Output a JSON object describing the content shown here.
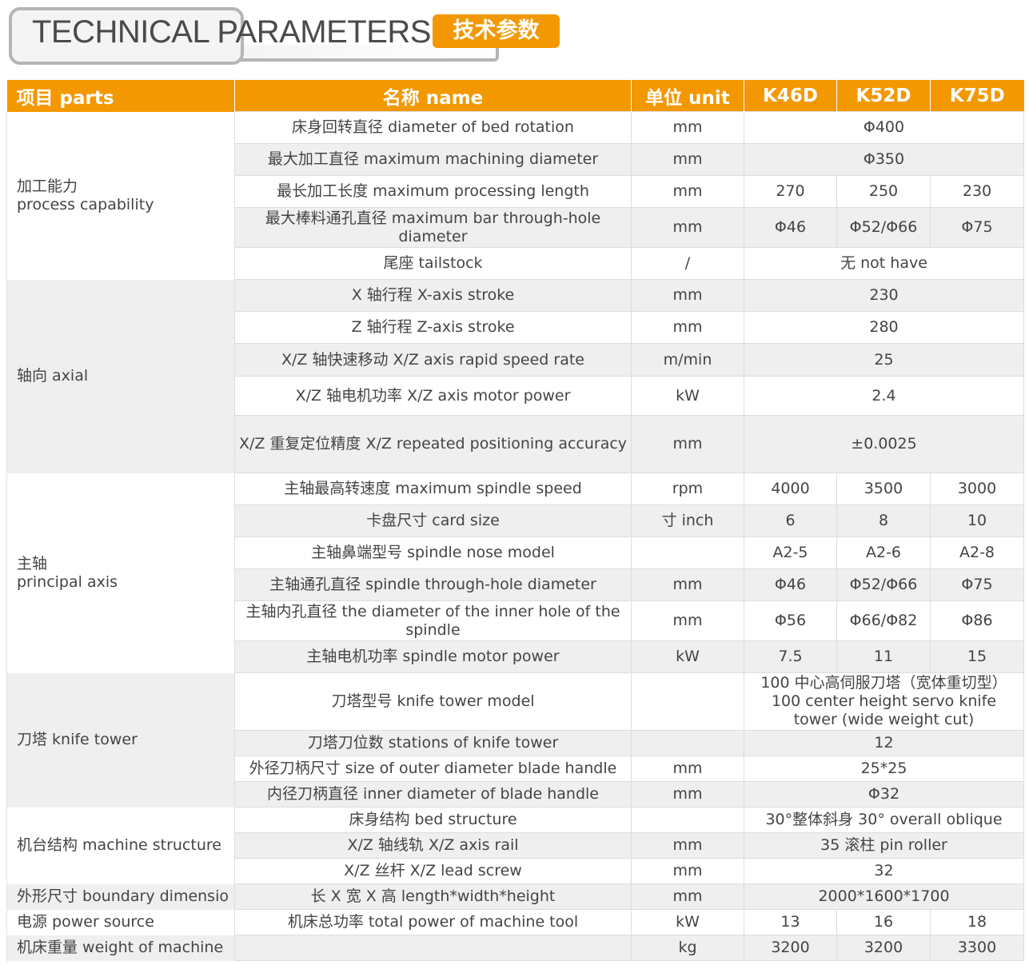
{
  "header": {
    "title": "TECHNICAL PARAMETERS",
    "badge": "技术参数"
  },
  "colors": {
    "accent": "#f39800",
    "row_alt": "#efefef"
  },
  "columns": [
    "项目 parts",
    "名称 name",
    "单位 unit",
    "K46D",
    "K52D",
    "K75D"
  ],
  "groups": [
    {
      "label": "加工能力\nprocess capability",
      "rows": [
        {
          "name": "床身回转直径 diameter of bed rotation",
          "unit": "mm",
          "value": "Φ400"
        },
        {
          "name": "最大加工直径 maximum machining diameter",
          "unit": "mm",
          "value": "Φ350"
        },
        {
          "name": "最长加工长度 maximum processing length",
          "unit": "mm",
          "values": [
            "270",
            "250",
            "230"
          ]
        },
        {
          "name": "最大棒料通孔直径 maximum bar through-hole diameter",
          "unit": "mm",
          "values": [
            "Φ46",
            "Φ52/Φ66",
            "Φ75"
          ]
        },
        {
          "name": "尾座 tailstock",
          "unit": "/",
          "value": "无 not have"
        }
      ]
    },
    {
      "label": "轴向 axial",
      "rows": [
        {
          "name": "X 轴行程 X-axis stroke",
          "unit": "mm",
          "value": "230"
        },
        {
          "name": "Z 轴行程 Z-axis stroke",
          "unit": "mm",
          "value": "280"
        },
        {
          "name": "X/Z 轴快速移动 X/Z axis rapid speed rate",
          "unit": "m/min",
          "value": "25"
        },
        {
          "name": "X/Z 轴电机功率 X/Z axis motor power",
          "unit": "kW",
          "value": "2.4"
        },
        {
          "name": "X/Z 重复定位精度 X/Z repeated positioning accuracy",
          "unit": "mm",
          "value": "±0.0025"
        }
      ]
    },
    {
      "label": "主轴\nprincipal axis",
      "rows": [
        {
          "name": "主轴最高转速度 maximum spindle speed",
          "unit": "rpm",
          "values": [
            "4000",
            "3500",
            "3000"
          ]
        },
        {
          "name": "卡盘尺寸 card size",
          "unit": "寸 inch",
          "values": [
            "6",
            "8",
            "10"
          ]
        },
        {
          "name": "主轴鼻端型号 spindle nose model",
          "unit": "",
          "values": [
            "A2-5",
            "A2-6",
            "A2-8"
          ]
        },
        {
          "name": "主轴通孔直径 spindle through-hole diameter",
          "unit": "mm",
          "values": [
            "Φ46",
            "Φ52/Φ66",
            "Φ75"
          ]
        },
        {
          "name": "主轴内孔直径 the diameter of the inner hole of the spindle",
          "unit": "mm",
          "values": [
            "Φ56",
            "Φ66/Φ82",
            "Φ86"
          ]
        },
        {
          "name": "主轴电机功率 spindle motor power",
          "unit": "kW",
          "values": [
            "7.5",
            "11",
            "15"
          ]
        }
      ]
    },
    {
      "label": "刀塔 knife tower",
      "rows": [
        {
          "name": "刀塔型号 knife tower model",
          "unit": "",
          "value": "100 中心高伺服刀塔（宽体重切型）100 center height servo knife tower (wide weight cut)"
        },
        {
          "name": "刀塔刀位数 stations of knife tower",
          "unit": "",
          "value": "12"
        },
        {
          "name": "外径刀柄尺寸 size of outer diameter blade handle",
          "unit": "mm",
          "value": "25*25"
        },
        {
          "name": "内径刀柄直径 inner diameter of blade handle",
          "unit": "mm",
          "value": "Φ32"
        }
      ]
    },
    {
      "label": "机台结构 machine structure",
      "rows": [
        {
          "name": "床身结构 bed structure",
          "unit": "",
          "value": "30°整体斜身 30° overall oblique"
        },
        {
          "name": "X/Z 轴线轨 X/Z axis rail",
          "unit": "mm",
          "value": "35 滚柱 pin roller"
        },
        {
          "name": "X/Z 丝杆 X/Z lead screw",
          "unit": "mm",
          "value": "32"
        }
      ]
    },
    {
      "label": "外形尺寸 boundary dimensio",
      "rows": [
        {
          "name": "长 X 宽 X 高 length*width*height",
          "unit": "mm",
          "value": "2000*1600*1700"
        }
      ]
    },
    {
      "label": "电源 power source",
      "rows": [
        {
          "name": "机床总功率 total power of machine tool",
          "unit": "kW",
          "values": [
            "13",
            "16",
            "18"
          ]
        }
      ]
    },
    {
      "label": "机床重量 weight of machine",
      "rows": [
        {
          "name": "",
          "unit": "kg",
          "values": [
            "3200",
            "3200",
            "3300"
          ]
        }
      ]
    }
  ]
}
